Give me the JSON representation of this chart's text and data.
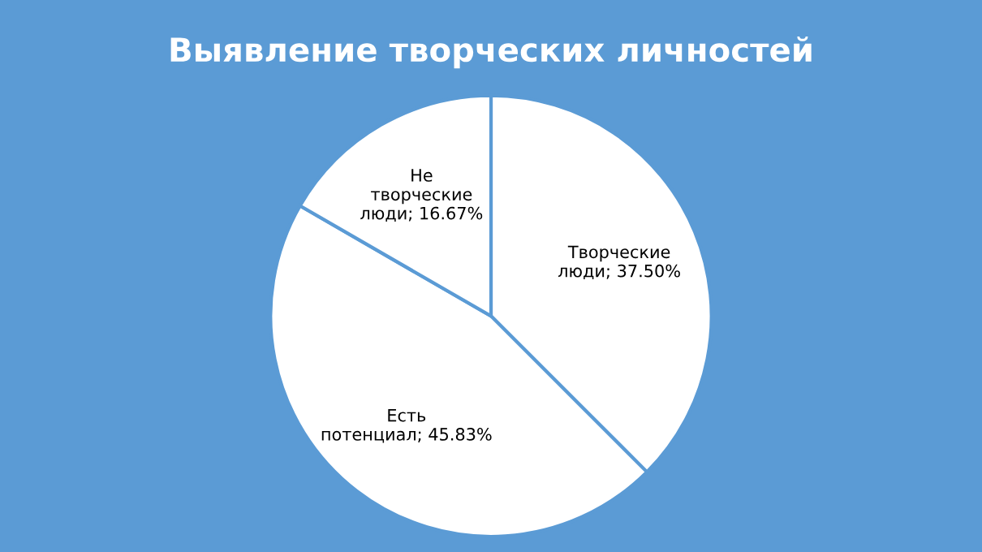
{
  "chart_data": {
    "type": "pie",
    "title": "Выявление творческих личностей",
    "categories": [
      "Творческие люди",
      "Есть потенциал",
      "Не творческие люди"
    ],
    "values": [
      37.5,
      45.83,
      16.67
    ],
    "value_labels": [
      "; 37.50%",
      "; 45.83%",
      "; 16.67%"
    ],
    "colors": [
      "#ffffff",
      "#ffffff",
      "#ffffff"
    ]
  }
}
